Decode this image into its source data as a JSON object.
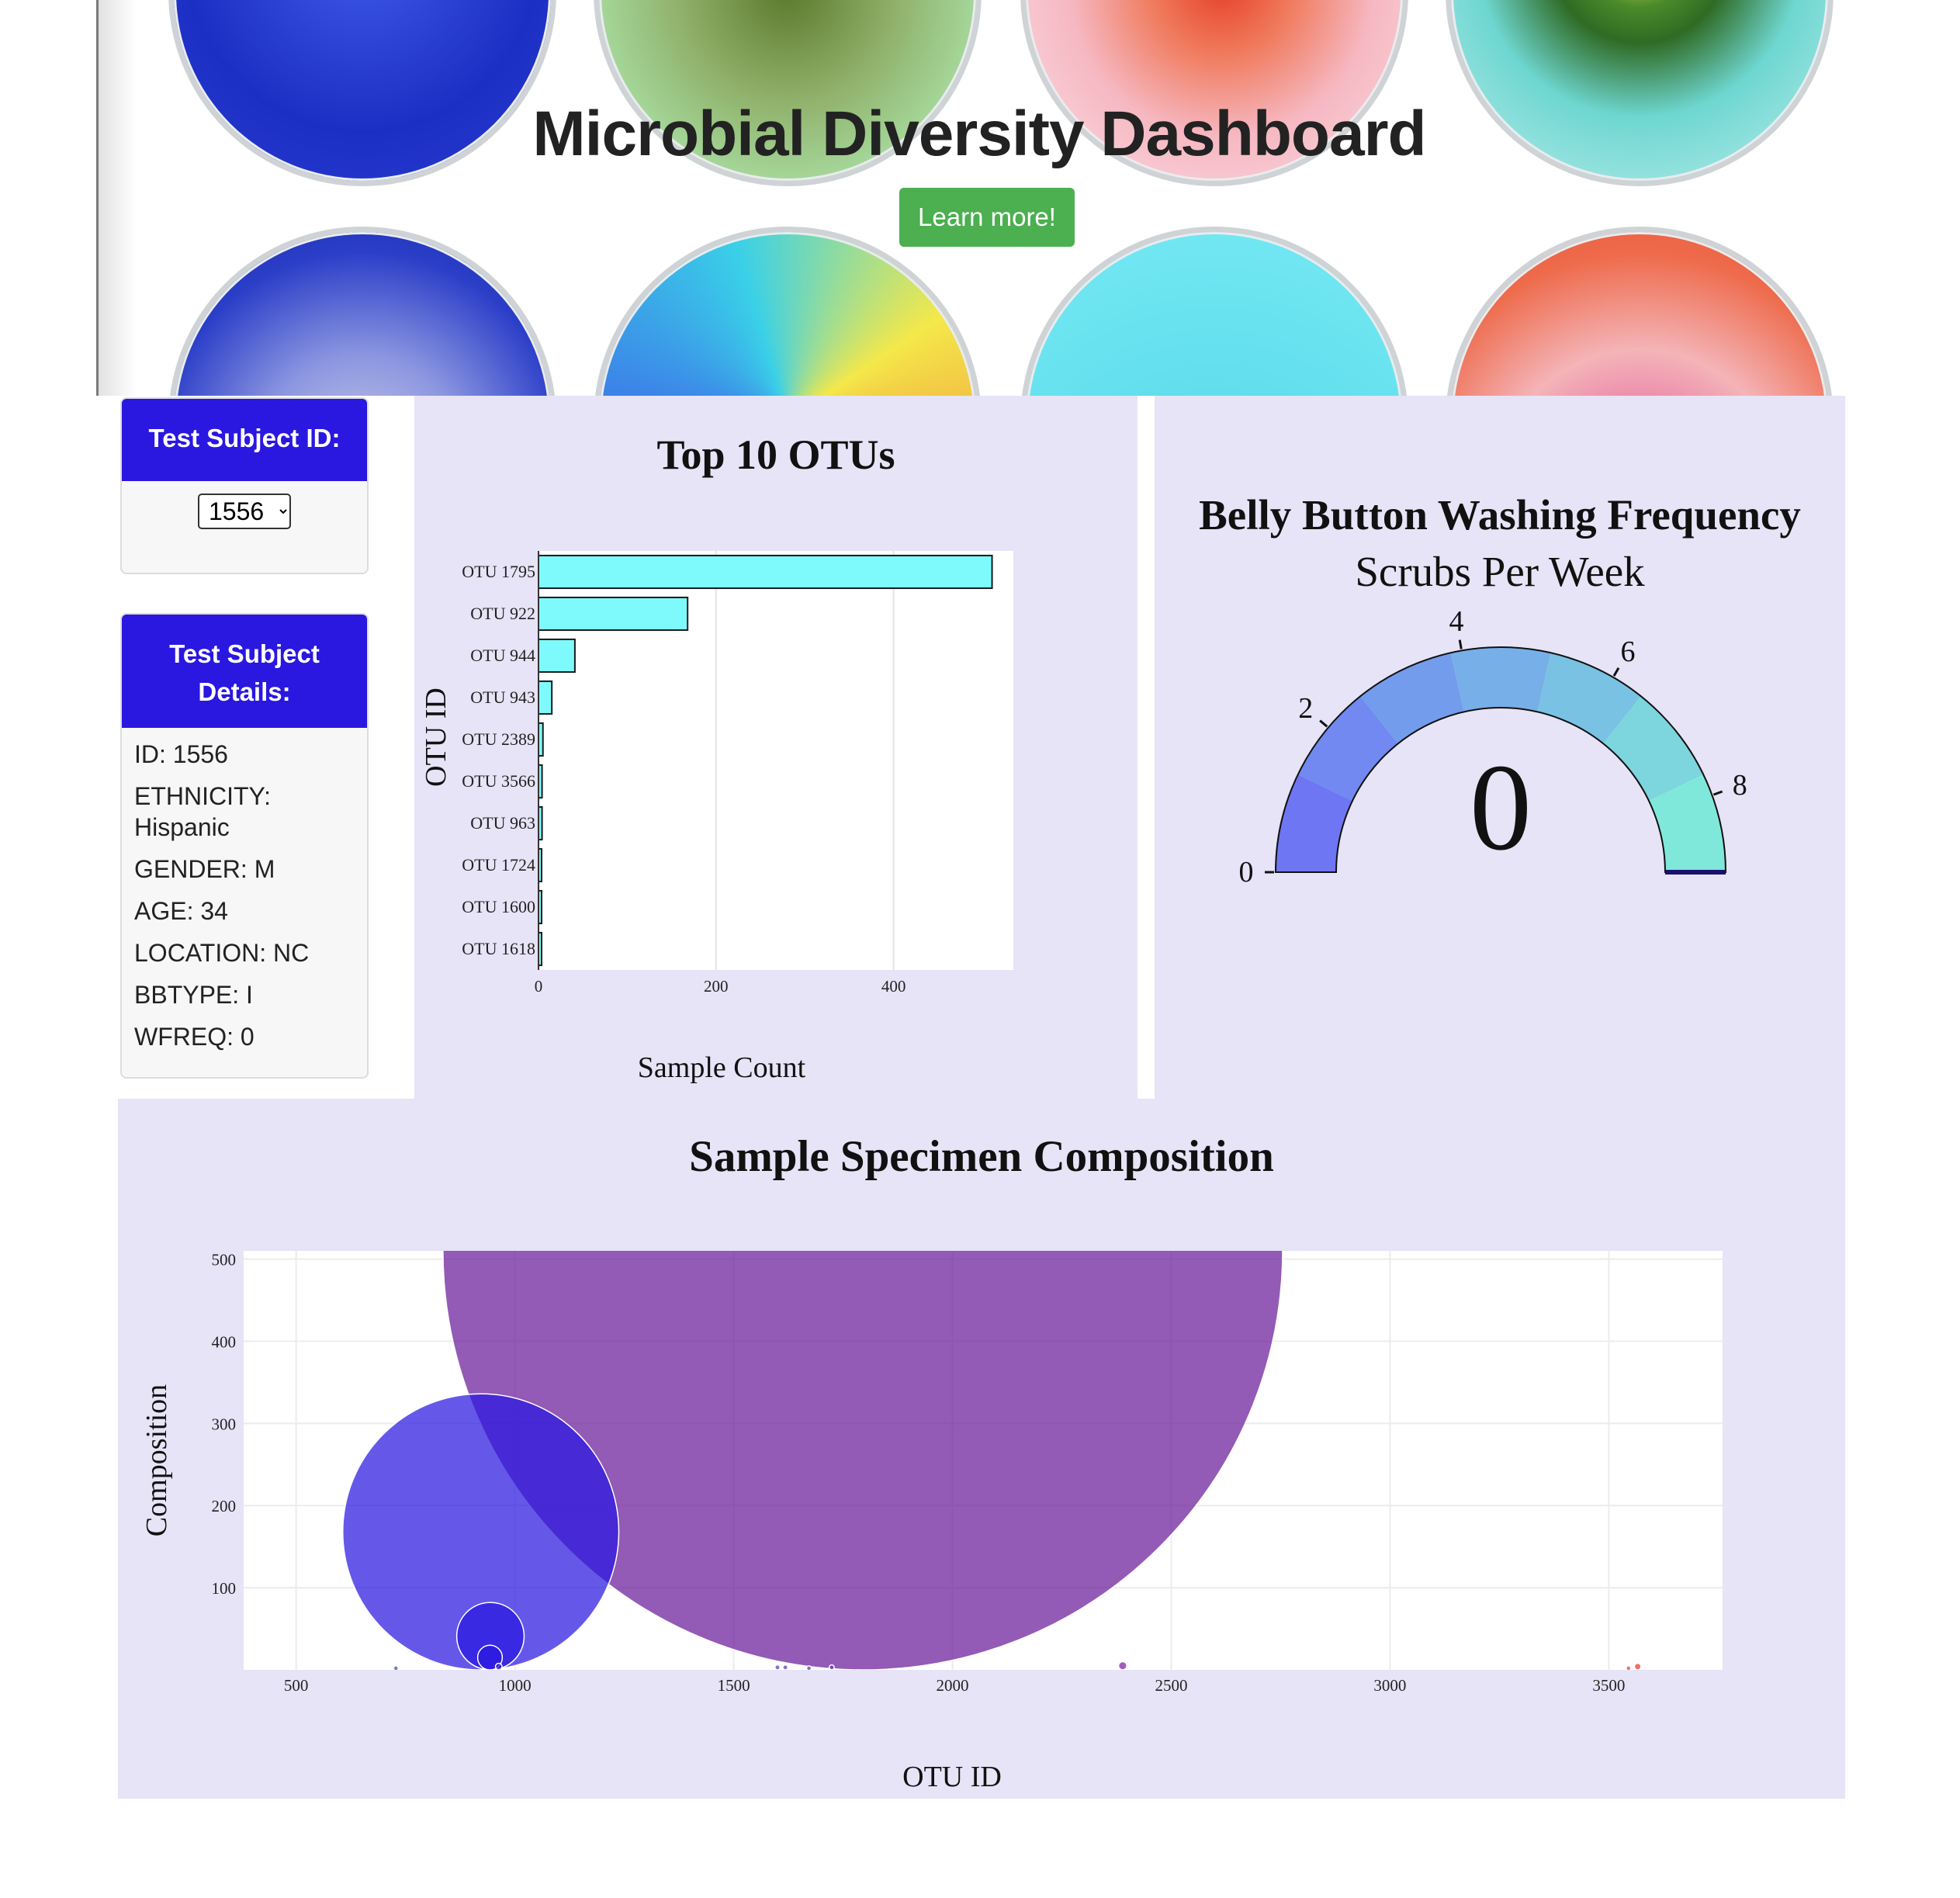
{
  "hero": {
    "title": "Microbial Diversity Dashboard",
    "button_label": "Learn more!"
  },
  "selector": {
    "heading": "Test Subject ID:",
    "options": [
      "1556"
    ],
    "selected": "1556"
  },
  "details": {
    "heading": "Test Subject Details:",
    "lines": [
      "ID: 1556",
      "ETHNICITY: Hispanic",
      "GENDER: M",
      "AGE: 34",
      "LOCATION: NC",
      "BBTYPE: I",
      "WFREQ: 0"
    ]
  },
  "colors": {
    "header_blue": "#2a17e0",
    "button_green": "#4caf50",
    "panel_lavender": "#e6e4f6",
    "bar_fill": "#7ffafc"
  },
  "chart_data": [
    {
      "type": "bar",
      "orientation": "horizontal",
      "title": "Top 10 OTUs",
      "xlabel": "Sample Count",
      "ylabel": "OTU ID",
      "categories": [
        "OTU 1795",
        "OTU 922",
        "OTU 944",
        "OTU 943",
        "OTU 2389",
        "OTU 3566",
        "OTU 963",
        "OTU 1724",
        "OTU 1600",
        "OTU 1618"
      ],
      "values": [
        511,
        168,
        41,
        15,
        5,
        4,
        4,
        3,
        3,
        3
      ],
      "xlim": [
        0,
        535
      ],
      "xticks": [
        0,
        200,
        400
      ],
      "grid": true
    },
    {
      "type": "gauge",
      "title": "Belly Button Washing Frequency",
      "subtitle": "Scrubs Per Week",
      "value": 0,
      "range": [
        0,
        9
      ],
      "tick_labels": [
        "0",
        "2",
        "4",
        "6",
        "8"
      ],
      "tick_values": [
        0,
        2,
        4,
        6,
        8
      ],
      "step_colors": [
        "#6f76f3",
        "#7189f0",
        "#749ced",
        "#77afe8",
        "#7ac2e3",
        "#7dd5de",
        "#80e8da"
      ]
    },
    {
      "type": "scatter",
      "title": "Sample Specimen Composition",
      "xlabel": "OTU ID",
      "ylabel": "Composition",
      "xlim": [
        380,
        3760
      ],
      "ylim": [
        0,
        510
      ],
      "xticks": [
        500,
        1000,
        1500,
        2000,
        2500,
        3000,
        3500
      ],
      "yticks": [
        100,
        200,
        300,
        400,
        500
      ],
      "grid": true,
      "points": [
        {
          "x": 1795,
          "y": 511,
          "size": 511,
          "color": "#6a1b9a"
        },
        {
          "x": 922,
          "y": 168,
          "size": 168,
          "color": "#2a17e0"
        },
        {
          "x": 944,
          "y": 41,
          "size": 41,
          "color": "#2a17e0"
        },
        {
          "x": 943,
          "y": 15,
          "size": 15,
          "color": "#2a17e0"
        },
        {
          "x": 2389,
          "y": 5,
          "size": 5,
          "color": "#7b1fa2"
        },
        {
          "x": 3566,
          "y": 4,
          "size": 4,
          "color": "#e53935"
        },
        {
          "x": 963,
          "y": 4,
          "size": 4,
          "color": "#2a17e0"
        },
        {
          "x": 1724,
          "y": 3,
          "size": 3,
          "color": "#5e35b1"
        },
        {
          "x": 1600,
          "y": 3,
          "size": 3,
          "color": "#5e35b1"
        },
        {
          "x": 1618,
          "y": 3,
          "size": 3,
          "color": "#5e35b1"
        },
        {
          "x": 728,
          "y": 2,
          "size": 2,
          "color": "#3949ab"
        },
        {
          "x": 1672,
          "y": 2,
          "size": 2,
          "color": "#5e35b1"
        },
        {
          "x": 3545,
          "y": 2,
          "size": 2,
          "color": "#e53935"
        }
      ]
    }
  ]
}
